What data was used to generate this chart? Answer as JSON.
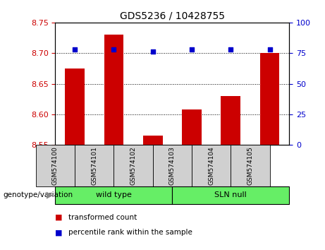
{
  "title": "GDS5236 / 10428755",
  "samples": [
    "GSM574100",
    "GSM574101",
    "GSM574102",
    "GSM574103",
    "GSM574104",
    "GSM574105"
  ],
  "transformed_counts": [
    8.675,
    8.73,
    8.565,
    8.608,
    8.63,
    8.7
  ],
  "percentile_ranks": [
    78,
    78,
    76,
    78,
    78,
    78
  ],
  "ylim_left": [
    8.55,
    8.75
  ],
  "ylim_right": [
    0,
    100
  ],
  "yticks_left": [
    8.55,
    8.6,
    8.65,
    8.7,
    8.75
  ],
  "yticks_right": [
    0,
    25,
    50,
    75,
    100
  ],
  "bar_color": "#cc0000",
  "scatter_color": "#0000cc",
  "group_labels": [
    "wild type",
    "SLN null"
  ],
  "group_ranges": [
    [
      0,
      3
    ],
    [
      3,
      6
    ]
  ],
  "group_color": "#66ee66",
  "sample_bg_color": "#d0d0d0",
  "xlabel_left": "genotype/variation",
  "legend_items": [
    "transformed count",
    "percentile rank within the sample"
  ],
  "legend_colors": [
    "#cc0000",
    "#0000cc"
  ],
  "plot_bg": "#ffffff",
  "title_fontsize": 10
}
